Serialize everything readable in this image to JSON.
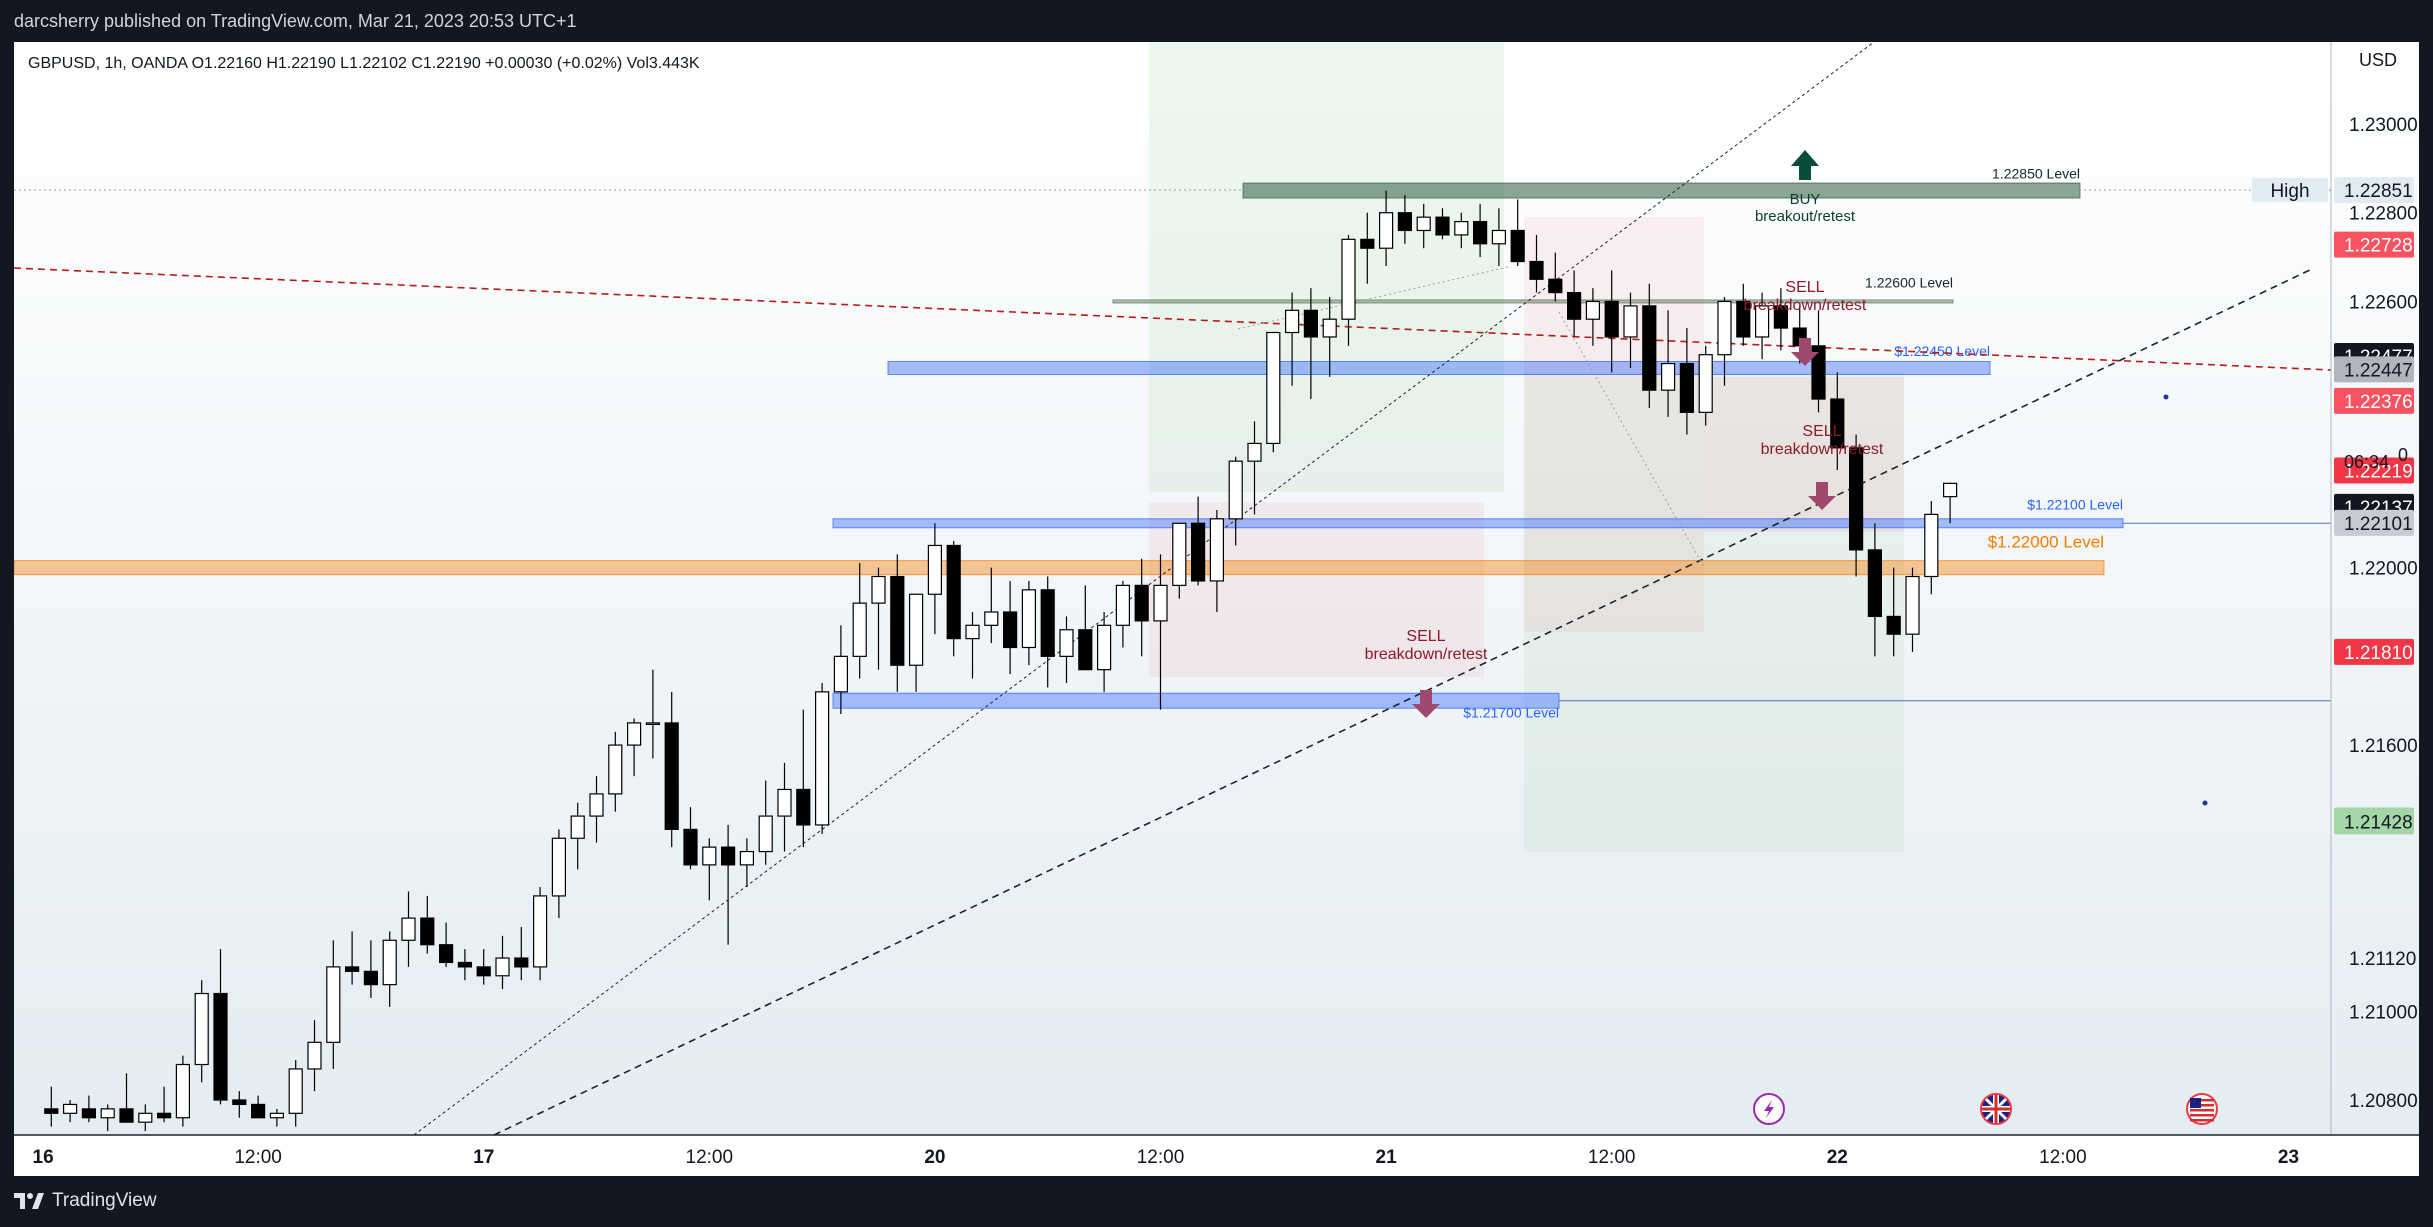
{
  "attribution": "darcsherry published on TradingView.com, Mar 21, 2023 20:53 UTC+1",
  "brand": "TradingView",
  "chart_data": {
    "type": "candlestick",
    "symbol_line": "GBPUSD, 1h, OANDA  O1.22160  H1.22190  L1.22102  C1.22190  +0.00030 (+0.02%)  Vol3.443K",
    "currency": "USD",
    "ylim": [
      1.2073,
      1.2315
    ],
    "y_ticks": [
      "1.20800",
      "1.21000",
      "1.21120",
      "1.21600",
      "1.22000",
      "1.22600",
      "1.22800",
      "1.23000"
    ],
    "x_ticks": [
      {
        "x": 0,
        "label": "16"
      },
      {
        "x": 12,
        "label": "12:00"
      },
      {
        "x": 24,
        "label": "17"
      },
      {
        "x": 36,
        "label": "12:00"
      },
      {
        "x": 48,
        "label": "20"
      },
      {
        "x": 60,
        "label": "12:00"
      },
      {
        "x": 72,
        "label": "21"
      },
      {
        "x": 84,
        "label": "12:00"
      },
      {
        "x": 96,
        "label": "22"
      },
      {
        "x": 108,
        "label": "12:00"
      },
      {
        "x": 120,
        "label": "23"
      }
    ],
    "candles": [
      [
        1,
        1.2078,
        1.2083,
        1.2074,
        1.2077
      ],
      [
        2,
        1.2077,
        1.208,
        1.2075,
        1.2079
      ],
      [
        3,
        1.2078,
        1.2081,
        1.2075,
        1.2076
      ],
      [
        4,
        1.2076,
        1.2079,
        1.2073,
        1.2078
      ],
      [
        5,
        1.2078,
        1.2086,
        1.2075,
        1.2075
      ],
      [
        6,
        1.2075,
        1.2079,
        1.2073,
        1.2077
      ],
      [
        7,
        1.2077,
        1.2083,
        1.2075,
        1.2076
      ],
      [
        8,
        1.2076,
        1.209,
        1.2074,
        1.2088
      ],
      [
        9,
        1.2088,
        1.2107,
        1.2084,
        1.2104
      ],
      [
        10,
        1.2104,
        1.2114,
        1.2079,
        1.208
      ],
      [
        11,
        1.208,
        1.2082,
        1.2076,
        1.2079
      ],
      [
        12,
        1.2079,
        1.2081,
        1.2076,
        1.2076
      ],
      [
        13,
        1.2076,
        1.2078,
        1.2074,
        1.2077
      ],
      [
        14,
        1.2077,
        1.2089,
        1.2074,
        1.2087
      ],
      [
        15,
        1.2087,
        1.2098,
        1.2082,
        1.2093
      ],
      [
        16,
        1.2093,
        1.2116,
        1.2087,
        1.211
      ],
      [
        17,
        1.211,
        1.2118,
        1.2106,
        1.2109
      ],
      [
        18,
        1.2109,
        1.2116,
        1.2103,
        1.2106
      ],
      [
        19,
        1.2106,
        1.2118,
        1.2101,
        1.2116
      ],
      [
        20,
        1.2116,
        1.2127,
        1.211,
        1.2121
      ],
      [
        21,
        1.2121,
        1.2126,
        1.2113,
        1.2115
      ],
      [
        22,
        1.2115,
        1.212,
        1.211,
        1.2111
      ],
      [
        23,
        1.2111,
        1.2114,
        1.2107,
        1.211
      ],
      [
        24,
        1.211,
        1.2114,
        1.2106,
        1.2108
      ],
      [
        25,
        1.2108,
        1.2117,
        1.2105,
        1.2112
      ],
      [
        26,
        1.2112,
        1.2119,
        1.2107,
        1.211
      ],
      [
        27,
        1.211,
        1.2128,
        1.2107,
        1.2126
      ],
      [
        28,
        1.2126,
        1.2141,
        1.2121,
        1.2139
      ],
      [
        29,
        1.2139,
        1.2147,
        1.2132,
        1.2144
      ],
      [
        30,
        1.2144,
        1.2153,
        1.2138,
        1.2149
      ],
      [
        31,
        1.2149,
        1.2163,
        1.2145,
        1.216
      ],
      [
        32,
        1.216,
        1.2166,
        1.2153,
        1.2165
      ],
      [
        33,
        1.2165,
        1.2177,
        1.2157,
        1.2165
      ],
      [
        34,
        1.2165,
        1.2172,
        1.2137,
        1.2141
      ],
      [
        35,
        1.2141,
        1.2146,
        1.2132,
        1.2133
      ],
      [
        36,
        1.2133,
        1.2139,
        1.2125,
        1.2137
      ],
      [
        37,
        1.2137,
        1.2142,
        1.2115,
        1.2133
      ],
      [
        38,
        1.2133,
        1.2139,
        1.2128,
        1.2136
      ],
      [
        39,
        1.2136,
        1.2152,
        1.2133,
        1.2144
      ],
      [
        40,
        1.2144,
        1.2156,
        1.2136,
        1.215
      ],
      [
        41,
        1.215,
        1.2168,
        1.2137,
        1.2142
      ],
      [
        42,
        1.2142,
        1.2174,
        1.214,
        1.2172
      ],
      [
        43,
        1.2172,
        1.2187,
        1.2167,
        1.218
      ],
      [
        44,
        1.218,
        1.2201,
        1.2175,
        1.2192
      ],
      [
        45,
        1.2192,
        1.22,
        1.2177,
        1.2198
      ],
      [
        46,
        1.2198,
        1.2203,
        1.2172,
        1.2178
      ],
      [
        47,
        1.2178,
        1.2194,
        1.2172,
        1.2194
      ],
      [
        48,
        1.2194,
        1.221,
        1.2185,
        1.2205
      ],
      [
        49,
        1.2205,
        1.2206,
        1.218,
        1.2184
      ],
      [
        50,
        1.2184,
        1.219,
        1.2175,
        1.2187
      ],
      [
        51,
        1.2187,
        1.22,
        1.2183,
        1.219
      ],
      [
        52,
        1.219,
        1.2197,
        1.2176,
        1.2182
      ],
      [
        53,
        1.2182,
        1.2197,
        1.2178,
        1.2195
      ],
      [
        54,
        1.2195,
        1.2198,
        1.2173,
        1.218
      ],
      [
        55,
        1.218,
        1.2189,
        1.2174,
        1.2186
      ],
      [
        56,
        1.2186,
        1.2196,
        1.2177,
        1.2177
      ],
      [
        57,
        1.2177,
        1.219,
        1.2172,
        1.2187
      ],
      [
        58,
        1.2187,
        1.2197,
        1.2182,
        1.2196
      ],
      [
        59,
        1.2196,
        1.2202,
        1.218,
        1.2188
      ],
      [
        60,
        1.2188,
        1.2203,
        1.2168,
        1.2196
      ],
      [
        61,
        1.2196,
        1.221,
        1.2193,
        1.221
      ],
      [
        62,
        1.221,
        1.2216,
        1.2196,
        1.2197
      ],
      [
        63,
        1.2197,
        1.2213,
        1.219,
        1.2211
      ],
      [
        64,
        1.2211,
        1.2225,
        1.2205,
        1.2224
      ],
      [
        65,
        1.2224,
        1.2233,
        1.2212,
        1.2228
      ],
      [
        66,
        1.2228,
        1.2253,
        1.2226,
        1.2253
      ],
      [
        67,
        1.2253,
        1.2262,
        1.2241,
        1.2258
      ],
      [
        68,
        1.2258,
        1.2263,
        1.2238,
        1.2252
      ],
      [
        69,
        1.2252,
        1.2261,
        1.2243,
        1.2256
      ],
      [
        70,
        1.2256,
        1.2275,
        1.225,
        1.2274
      ],
      [
        71,
        1.2274,
        1.228,
        1.2264,
        1.2272
      ],
      [
        72,
        1.2272,
        1.2285,
        1.2268,
        1.228
      ],
      [
        73,
        1.228,
        1.2284,
        1.2273,
        1.2276
      ],
      [
        74,
        1.2276,
        1.2282,
        1.2272,
        1.2279
      ],
      [
        75,
        1.2279,
        1.2281,
        1.2274,
        1.2275
      ],
      [
        76,
        1.2275,
        1.228,
        1.2272,
        1.2278
      ],
      [
        77,
        1.2278,
        1.2282,
        1.227,
        1.2273
      ],
      [
        78,
        1.2273,
        1.2281,
        1.2268,
        1.2276
      ],
      [
        79,
        1.2276,
        1.2283,
        1.2268,
        1.2269
      ],
      [
        80,
        1.2269,
        1.2275,
        1.2262,
        1.2265
      ],
      [
        81,
        1.2265,
        1.2271,
        1.226,
        1.2262
      ],
      [
        82,
        1.2262,
        1.2267,
        1.2252,
        1.2256
      ],
      [
        83,
        1.2256,
        1.2263,
        1.225,
        1.226
      ],
      [
        84,
        1.226,
        1.2267,
        1.2244,
        1.2252
      ],
      [
        85,
        1.2252,
        1.2262,
        1.2245,
        1.2259
      ],
      [
        86,
        1.2259,
        1.2264,
        1.2236,
        1.224
      ],
      [
        87,
        1.224,
        1.2258,
        1.2234,
        1.2246
      ],
      [
        88,
        1.2246,
        1.2254,
        1.223,
        1.2235
      ],
      [
        89,
        1.2235,
        1.225,
        1.2232,
        1.2248
      ],
      [
        90,
        1.2248,
        1.2261,
        1.2241,
        1.226
      ],
      [
        91,
        1.226,
        1.2264,
        1.225,
        1.2252
      ],
      [
        92,
        1.2252,
        1.2262,
        1.2247,
        1.2259
      ],
      [
        93,
        1.2259,
        1.2263,
        1.2249,
        1.2254
      ],
      [
        94,
        1.2254,
        1.2259,
        1.2246,
        1.225
      ],
      [
        95,
        1.225,
        1.2258,
        1.2235,
        1.2238
      ],
      [
        96,
        1.2238,
        1.2244,
        1.2222,
        1.2227
      ],
      [
        97,
        1.2227,
        1.223,
        1.2198,
        1.2204
      ],
      [
        98,
        1.2204,
        1.221,
        1.218,
        1.2189
      ],
      [
        99,
        1.2189,
        1.22,
        1.218,
        1.2185
      ],
      [
        100,
        1.2185,
        1.22,
        1.2181,
        1.2198
      ],
      [
        101,
        1.2198,
        1.2215,
        1.2194,
        1.2212
      ],
      [
        102,
        1.2216,
        1.2219,
        1.221,
        1.2219
      ]
    ],
    "levels": [
      {
        "price": 1.2285,
        "label": "1.22850 Level",
        "color": "#2e5c3e"
      },
      {
        "price": 1.226,
        "label": "1.22600 Level",
        "color": "#4f6b4f"
      },
      {
        "price": 1.2245,
        "label": "$1.22450 Level",
        "color": "#2962ff"
      },
      {
        "price": 1.221,
        "label": "$1.22100 Level",
        "color": "#2962ff"
      },
      {
        "price": 1.22,
        "label": "$1.22000 Level",
        "color": "#f57c00"
      },
      {
        "price": 1.217,
        "label": "$1.21700 Level",
        "color": "#2962ff"
      }
    ],
    "annotations": [
      {
        "text": [
          "BUY",
          "breakout/retest"
        ],
        "color": "#0b3d2e",
        "arrow": "up",
        "arrow_color": "#0b4d3a"
      },
      {
        "text": [
          "SELL",
          "breakdown/retest"
        ],
        "color": "#8b1a2b",
        "arrow": "down",
        "arrow_color": "#a0486d"
      },
      {
        "text": [
          "SELL",
          "breakdown/retest"
        ],
        "color": "#8b1a2b",
        "arrow": "down",
        "arrow_color": "#a0486d"
      },
      {
        "text": [
          "SELL",
          "breakdown/retest"
        ],
        "color": "#8b1a2b",
        "arrow": "down",
        "arrow_color": "#a0486d"
      }
    ],
    "price_labels": [
      {
        "text": "High",
        "price": 1.22851,
        "bg": "#e1ecf2",
        "fg": "#131722",
        "kind": "tag"
      },
      {
        "text": "1.22851",
        "price": 1.22851,
        "bg": "#e1ecf2",
        "fg": "#131722"
      },
      {
        "text": "1.22728",
        "price": 1.22728,
        "bg": "#f7525f",
        "fg": "#ffffff"
      },
      {
        "text": "1.22477",
        "price": 1.22477,
        "bg": "#131722",
        "fg": "#ffffff"
      },
      {
        "text": "1.22447",
        "price": 1.22447,
        "bg": "#b2b5be",
        "fg": "#131722"
      },
      {
        "text": "1.22376",
        "price": 1.22376,
        "bg": "#f7525f",
        "fg": "#ffffff"
      },
      {
        "text": "1.22219",
        "price": 1.22219,
        "bg": "#f23645",
        "fg": "#ffffff"
      },
      {
        "text": "1.22137",
        "price": 1.22137,
        "bg": "#131722",
        "fg": "#ffffff"
      },
      {
        "text": "1.22101",
        "price": 1.22101,
        "bg": "#c8cbd2",
        "fg": "#131722"
      },
      {
        "text": "1.21810",
        "price": 1.2181,
        "bg": "#f23645",
        "fg": "#ffffff"
      },
      {
        "text": "1.21430",
        "price": 1.2143,
        "bg": "#a5d6a7",
        "fg": "#131722"
      },
      {
        "text": "1.21428",
        "price": 1.21428,
        "bg": "#a5d6a7",
        "fg": "#131722"
      }
    ],
    "countdown": "06:34",
    "volume_flag": "0",
    "event_icons": [
      "lightning-icon",
      "uk-flag-icon",
      "us-flag-icon"
    ]
  }
}
